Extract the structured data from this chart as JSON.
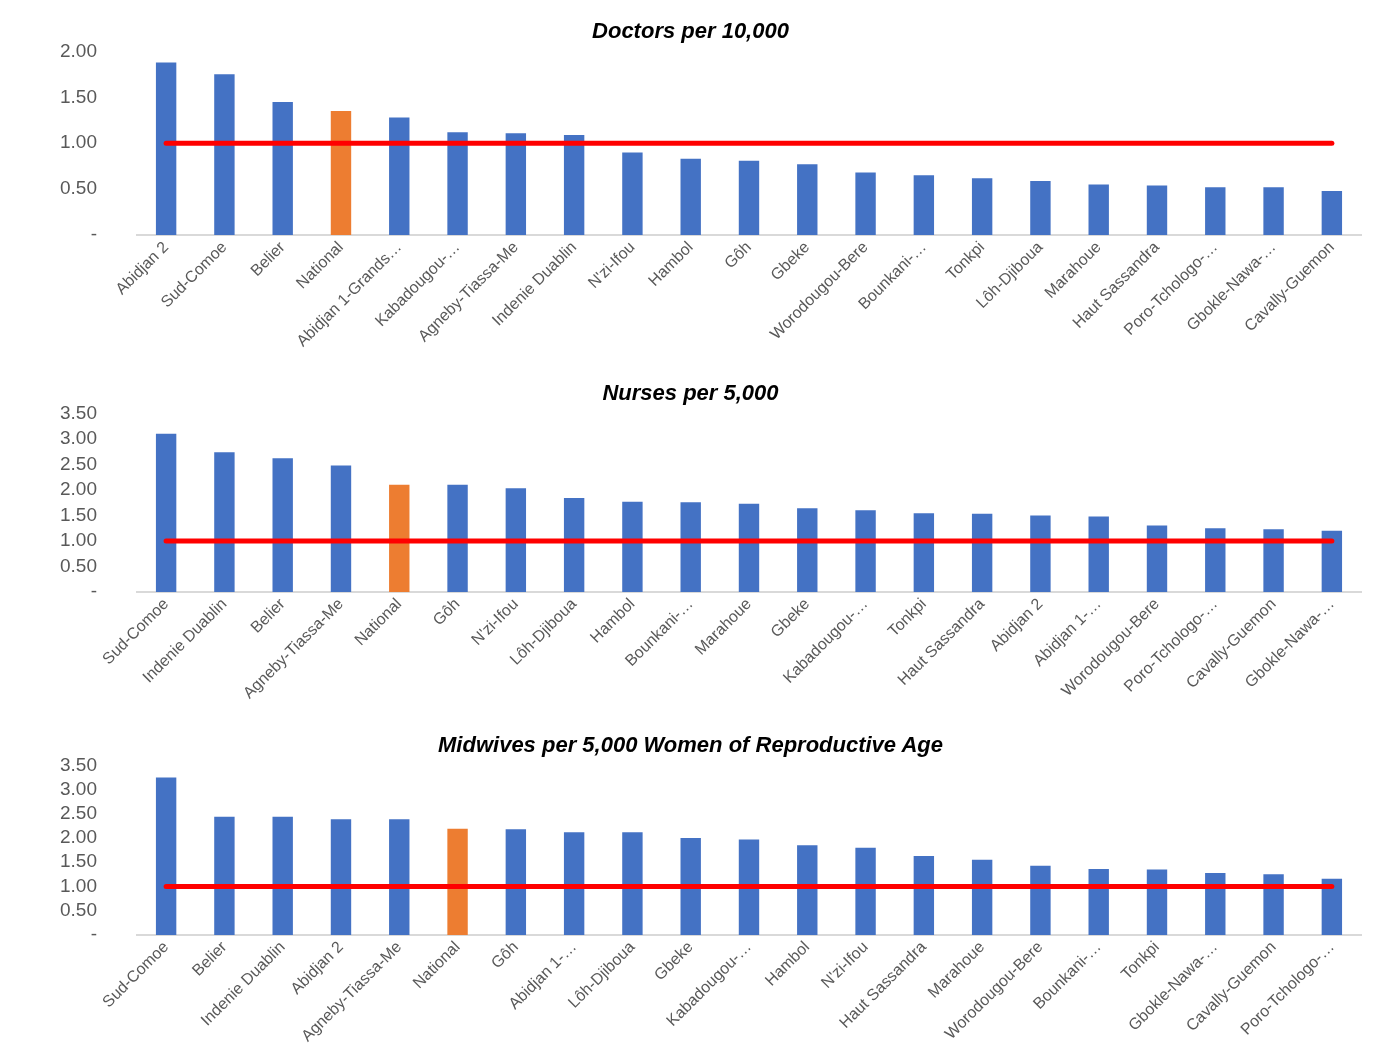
{
  "chart_data": [
    {
      "type": "bar",
      "title": "Doctors per 10,000",
      "categories": [
        "Abidjan 2",
        "Sud-Comoe",
        "Belier",
        "National",
        "Abidjan 1-Grands…",
        "Kabadougou-…",
        "Agneby-Tiassa-Me",
        "Indenie Duablin",
        "N'zi-Ifou",
        "Hambol",
        "Gôh",
        "Gbeke",
        "Worodougou-Bere",
        "Bounkani-…",
        "Tonkpi",
        "Lôh-Djiboua",
        "Marahoue",
        "Haut Sassandra",
        "Poro-Tchologo-…",
        "Gbokle-Nawa-…",
        "Cavally-Guemon"
      ],
      "values": [
        1.88,
        1.75,
        1.45,
        1.35,
        1.28,
        1.12,
        1.11,
        1.09,
        0.9,
        0.83,
        0.81,
        0.77,
        0.68,
        0.65,
        0.62,
        0.59,
        0.55,
        0.54,
        0.52,
        0.52,
        0.48
      ],
      "colors": [
        "#4472c4",
        "#4472c4",
        "#4472c4",
        "#ed7d31",
        "#4472c4",
        "#4472c4",
        "#4472c4",
        "#4472c4",
        "#4472c4",
        "#4472c4",
        "#4472c4",
        "#4472c4",
        "#4472c4",
        "#4472c4",
        "#4472c4",
        "#4472c4",
        "#4472c4",
        "#4472c4",
        "#4472c4",
        "#4472c4",
        "#4472c4"
      ],
      "ylim": [
        0,
        2
      ],
      "yticks": [
        {
          "value": 0,
          "label": "-"
        },
        {
          "value": 0.5,
          "label": "0.50"
        },
        {
          "value": 1,
          "label": "1.00"
        },
        {
          "value": 1.5,
          "label": "1.50"
        },
        {
          "value": 2,
          "label": "2.00"
        }
      ],
      "ref_lines": [
        {
          "axis": "y",
          "value": 1,
          "color": "#ff0000"
        }
      ],
      "grid": false,
      "legend": false
    },
    {
      "type": "bar",
      "title": "Nurses per 5,000",
      "categories": [
        "Sud-Comoe",
        "Indenie Duablin",
        "Belier",
        "Agneby-Tiassa-Me",
        "National",
        "Gôh",
        "N'zi-Ifou",
        "Lôh-Djiboua",
        "Hambol",
        "Bounkani-…",
        "Marahoue",
        "Gbeke",
        "Kabadougou-…",
        "Tonkpi",
        "Haut Sassandra",
        "Abidjan 2",
        "Abidjan 1-…",
        "Worodougou-Bere",
        "Poro-Tchologo-…",
        "Cavally-Guemon",
        "Gbokle-Nawa-…"
      ],
      "values": [
        3.1,
        2.74,
        2.62,
        2.48,
        2.1,
        2.1,
        2.03,
        1.84,
        1.77,
        1.76,
        1.73,
        1.64,
        1.6,
        1.54,
        1.53,
        1.5,
        1.48,
        1.3,
        1.25,
        1.23,
        1.2
      ],
      "colors": [
        "#4472c4",
        "#4472c4",
        "#4472c4",
        "#4472c4",
        "#ed7d31",
        "#4472c4",
        "#4472c4",
        "#4472c4",
        "#4472c4",
        "#4472c4",
        "#4472c4",
        "#4472c4",
        "#4472c4",
        "#4472c4",
        "#4472c4",
        "#4472c4",
        "#4472c4",
        "#4472c4",
        "#4472c4",
        "#4472c4",
        "#4472c4"
      ],
      "ylim": [
        0,
        3.5
      ],
      "yticks": [
        {
          "value": 0,
          "label": "-"
        },
        {
          "value": 0.5,
          "label": "0.50"
        },
        {
          "value": 1,
          "label": "1.00"
        },
        {
          "value": 1.5,
          "label": "1.50"
        },
        {
          "value": 2,
          "label": "2.00"
        },
        {
          "value": 2.5,
          "label": "2.50"
        },
        {
          "value": 3,
          "label": "3.00"
        },
        {
          "value": 3.5,
          "label": "3.50"
        }
      ],
      "ref_lines": [
        {
          "axis": "y",
          "value": 1,
          "color": "#ff0000"
        }
      ],
      "grid": false,
      "legend": false
    },
    {
      "type": "bar",
      "title": "Midwives per 5,000 Women of Reproductive Age",
      "categories": [
        "Sud-Comoe",
        "Belier",
        "Indenie Duablin",
        "Abidjan 2",
        "Agneby-Tiassa-Me",
        "National",
        "Gôh",
        "Abidjan 1-…",
        "Lôh-Djiboua",
        "Gbeke",
        "Kabadougou-…",
        "Hambol",
        "N'zi-Ifou",
        "Haut Sassandra",
        "Marahoue",
        "Worodougou-Bere",
        "Bounkani-…",
        "Tonkpi",
        "Gbokle-Nawa-…",
        "Cavally-Guemon",
        "Poro-Tchologo-…"
      ],
      "values": [
        3.25,
        2.44,
        2.44,
        2.39,
        2.39,
        2.19,
        2.18,
        2.12,
        2.12,
        2.0,
        1.97,
        1.85,
        1.8,
        1.63,
        1.55,
        1.43,
        1.36,
        1.35,
        1.28,
        1.25,
        1.16
      ],
      "colors": [
        "#4472c4",
        "#4472c4",
        "#4472c4",
        "#4472c4",
        "#4472c4",
        "#ed7d31",
        "#4472c4",
        "#4472c4",
        "#4472c4",
        "#4472c4",
        "#4472c4",
        "#4472c4",
        "#4472c4",
        "#4472c4",
        "#4472c4",
        "#4472c4",
        "#4472c4",
        "#4472c4",
        "#4472c4",
        "#4472c4",
        "#4472c4"
      ],
      "ylim": [
        0,
        3.5
      ],
      "yticks": [
        {
          "value": 0,
          "label": "-"
        },
        {
          "value": 0.5,
          "label": "0.50"
        },
        {
          "value": 1,
          "label": "1.00"
        },
        {
          "value": 1.5,
          "label": "1.50"
        },
        {
          "value": 2,
          "label": "2.00"
        },
        {
          "value": 2.5,
          "label": "2.50"
        },
        {
          "value": 3,
          "label": "3.00"
        },
        {
          "value": 3.5,
          "label": "3.50"
        }
      ],
      "ref_lines": [
        {
          "axis": "y",
          "value": 1,
          "color": "#ff0000"
        }
      ],
      "grid": false,
      "legend": false
    }
  ]
}
